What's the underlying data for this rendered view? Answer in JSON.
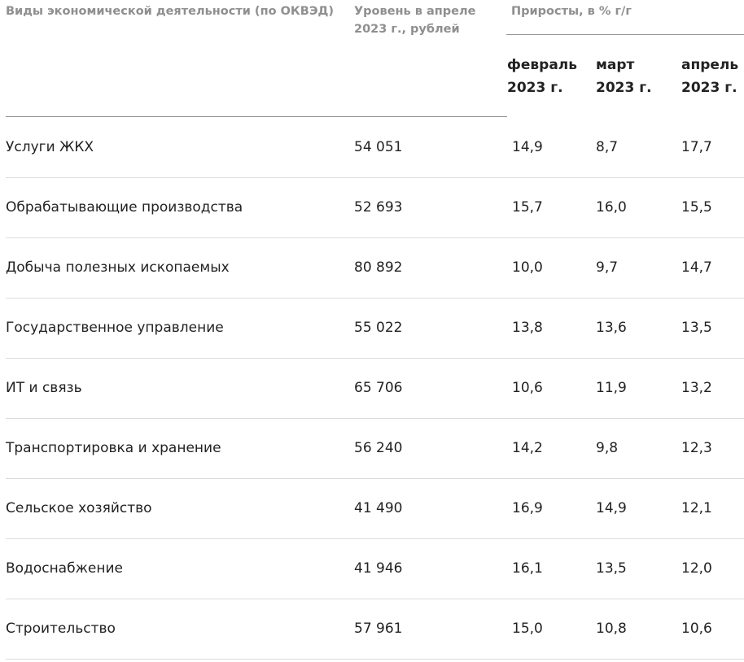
{
  "header": {
    "kind": "Виды экономической деятельности (по ОКВЭД)",
    "level": "Уровень в апреле 2023 г., рублей",
    "growth": "Приросты, в % г/г",
    "months": [
      "февраль 2023 г.",
      "март 2023 г.",
      "апрель 2023 г."
    ]
  },
  "rows": [
    {
      "name": "Услуги ЖКХ",
      "level": "54 051",
      "feb": "14,9",
      "mar": "8,7",
      "apr": "17,7"
    },
    {
      "name": "Обрабатывающие производства",
      "level": "52 693",
      "feb": "15,7",
      "mar": "16,0",
      "apr": "15,5"
    },
    {
      "name": "Добыча полезных ископаемых",
      "level": "80 892",
      "feb": "10,0",
      "mar": "9,7",
      "apr": "14,7"
    },
    {
      "name": "Государственное управление",
      "level": "55 022",
      "feb": "13,8",
      "mar": "13,6",
      "apr": "13,5"
    },
    {
      "name": "ИТ и связь",
      "level": "65 706",
      "feb": "10,6",
      "mar": "11,9",
      "apr": "13,2"
    },
    {
      "name": "Транспортировка и хранение",
      "level": "56 240",
      "feb": "14,2",
      "mar": "9,8",
      "apr": "12,3"
    },
    {
      "name": "Сельское хозяйство",
      "level": "41 490",
      "feb": "16,9",
      "mar": "14,9",
      "apr": "12,1"
    },
    {
      "name": "Водоснабжение",
      "level": "41 946",
      "feb": "16,1",
      "mar": "13,5",
      "apr": "12,0"
    },
    {
      "name": "Строительство",
      "level": "57 961",
      "feb": "15,0",
      "mar": "10,8",
      "apr": "10,6"
    }
  ]
}
